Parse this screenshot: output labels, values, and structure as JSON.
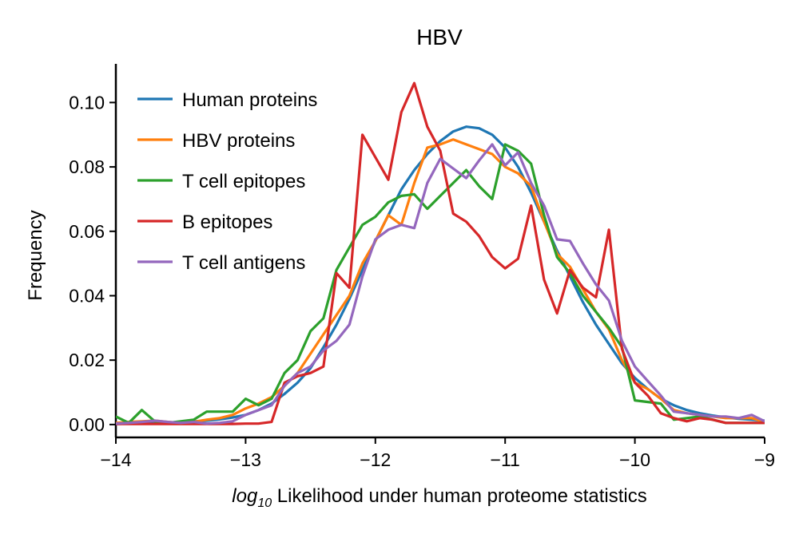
{
  "chart_data": {
    "type": "line",
    "title": "HBV",
    "xlabel_prefix": "log",
    "xlabel_subscript": "10",
    "xlabel_rest": " Likelihood under human proteome statistics",
    "ylabel": "Frequency",
    "xlim": [
      -14,
      -9
    ],
    "ylim": [
      -0.004,
      0.112
    ],
    "xticks": [
      -14,
      -13,
      -12,
      -11,
      -10,
      -9
    ],
    "xtick_labels": [
      "−14",
      "−13",
      "−12",
      "−11",
      "−10",
      "−9"
    ],
    "yticks": [
      0.0,
      0.02,
      0.04,
      0.06,
      0.08,
      0.1
    ],
    "ytick_labels": [
      "0.00",
      "0.02",
      "0.04",
      "0.06",
      "0.08",
      "0.10"
    ],
    "grid": false,
    "legend_position": "top-left",
    "x": [
      -14.0,
      -13.9,
      -13.8,
      -13.7,
      -13.6,
      -13.5,
      -13.4,
      -13.3,
      -13.2,
      -13.1,
      -13.0,
      -12.9,
      -12.8,
      -12.7,
      -12.6,
      -12.5,
      -12.4,
      -12.3,
      -12.2,
      -12.1,
      -12.0,
      -11.9,
      -11.8,
      -11.7,
      -11.6,
      -11.5,
      -11.4,
      -11.3,
      -11.2,
      -11.1,
      -11.0,
      -10.9,
      -10.8,
      -10.7,
      -10.6,
      -10.5,
      -10.4,
      -10.3,
      -10.2,
      -10.1,
      -10.0,
      -9.9,
      -9.8,
      -9.7,
      -9.6,
      -9.5,
      -9.4,
      -9.3,
      -9.2,
      -9.1,
      -9.0
    ],
    "series": [
      {
        "name": "Human proteins",
        "color": "#1f77b4",
        "values": [
          0.0002,
          0.0003,
          0.0004,
          0.0005,
          0.0006,
          0.0008,
          0.001,
          0.0012,
          0.0016,
          0.0022,
          0.003,
          0.0045,
          0.0065,
          0.0095,
          0.013,
          0.0175,
          0.024,
          0.031,
          0.039,
          0.048,
          0.057,
          0.065,
          0.073,
          0.079,
          0.084,
          0.088,
          0.091,
          0.0925,
          0.092,
          0.09,
          0.086,
          0.08,
          0.072,
          0.063,
          0.054,
          0.046,
          0.038,
          0.031,
          0.025,
          0.019,
          0.0145,
          0.011,
          0.008,
          0.006,
          0.0045,
          0.0035,
          0.0028,
          0.0022,
          0.0018,
          0.0015,
          0.0012
        ]
      },
      {
        "name": "HBV proteins",
        "color": "#ff7f0e",
        "values": [
          0.0005,
          0.0008,
          0.001,
          0.0012,
          0.0008,
          0.0005,
          0.0008,
          0.0015,
          0.002,
          0.003,
          0.005,
          0.0065,
          0.0085,
          0.012,
          0.016,
          0.022,
          0.028,
          0.034,
          0.04,
          0.05,
          0.057,
          0.065,
          0.062,
          0.075,
          0.086,
          0.087,
          0.0885,
          0.087,
          0.0855,
          0.084,
          0.08,
          0.078,
          0.074,
          0.063,
          0.053,
          0.049,
          0.042,
          0.035,
          0.0295,
          0.02,
          0.013,
          0.011,
          0.008,
          0.0045,
          0.0035,
          0.003,
          0.0025,
          0.002,
          0.002,
          0.002,
          0.0008
        ]
      },
      {
        "name": "T cell epitopes",
        "color": "#2ca02c",
        "values": [
          0.0025,
          0.0005,
          0.0045,
          0.001,
          0.0005,
          0.001,
          0.0015,
          0.004,
          0.004,
          0.004,
          0.008,
          0.006,
          0.008,
          0.016,
          0.02,
          0.029,
          0.033,
          0.048,
          0.055,
          0.062,
          0.0645,
          0.069,
          0.071,
          0.0715,
          0.067,
          0.071,
          0.075,
          0.079,
          0.074,
          0.07,
          0.087,
          0.085,
          0.081,
          0.065,
          0.052,
          0.047,
          0.04,
          0.035,
          0.03,
          0.024,
          0.0075,
          0.007,
          0.0065,
          0.0015,
          0.002,
          0.0025,
          0.0015,
          0.0005,
          0.0005,
          0.0005,
          0.0005
        ]
      },
      {
        "name": "B epitopes",
        "color": "#d62728",
        "values": [
          0.0002,
          0.0002,
          0.0002,
          0.0002,
          0.0002,
          0.0002,
          0.0002,
          0.0002,
          0.0002,
          0.0002,
          0.0003,
          0.0003,
          0.0008,
          0.013,
          0.015,
          0.016,
          0.018,
          0.047,
          0.0425,
          0.09,
          0.083,
          0.076,
          0.097,
          0.106,
          0.0925,
          0.085,
          0.0655,
          0.063,
          0.0585,
          0.052,
          0.0485,
          0.0515,
          0.068,
          0.045,
          0.0345,
          0.048,
          0.0425,
          0.0395,
          0.0605,
          0.0235,
          0.013,
          0.009,
          0.0035,
          0.002,
          0.001,
          0.002,
          0.0015,
          0.0005,
          0.0005,
          0.0005,
          0.0005
        ]
      },
      {
        "name": "T cell antigens",
        "color": "#9467bd",
        "values": [
          0.0003,
          0.0005,
          0.0008,
          0.0012,
          0.0008,
          0.0005,
          0.0008,
          0.0003,
          0.0005,
          0.001,
          0.003,
          0.0045,
          0.006,
          0.012,
          0.016,
          0.018,
          0.023,
          0.026,
          0.031,
          0.046,
          0.0575,
          0.0605,
          0.062,
          0.061,
          0.075,
          0.0825,
          0.0795,
          0.0765,
          0.082,
          0.087,
          0.0805,
          0.0845,
          0.075,
          0.068,
          0.0575,
          0.057,
          0.05,
          0.0435,
          0.0385,
          0.026,
          0.018,
          0.0135,
          0.009,
          0.004,
          0.0035,
          0.003,
          0.0025,
          0.0025,
          0.002,
          0.003,
          0.001
        ]
      }
    ]
  }
}
